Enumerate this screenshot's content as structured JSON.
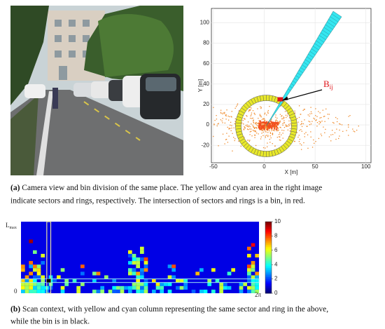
{
  "figure_a": {
    "plot": {
      "xlabel": "X [m]",
      "ylabel": "Y [m]",
      "xticks": [
        -50,
        0,
        50,
        100
      ],
      "yticks": [
        -20,
        0,
        20,
        40,
        60,
        80,
        100
      ],
      "xlim": [
        -52,
        105
      ],
      "ylim": [
        -37,
        114
      ],
      "annotation": {
        "main": "B",
        "sub": "ij"
      }
    },
    "caption": {
      "label": "(a)",
      "lines": [
        "Camera view and bin division of the same place. The yellow and cyan area in the right image",
        "indicate sectors and rings, respectively. The intersection of sectors and rings is a bin, in red."
      ]
    }
  },
  "figure_b": {
    "y_top_label": {
      "main": "L",
      "sub": "max"
    },
    "y_bottom_label": "0",
    "x_end_label": "2π",
    "colorbar_ticks": [
      0,
      2,
      4,
      6,
      8,
      10
    ],
    "colorbar_lim": [
      0,
      10
    ],
    "caption": {
      "label": "(b)",
      "lines": [
        "Scan context, with yellow and cyan column representing the same sector and ring in the above,",
        "while the bin is in black."
      ]
    }
  }
}
